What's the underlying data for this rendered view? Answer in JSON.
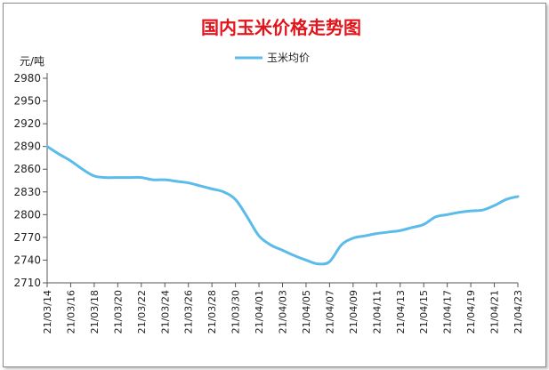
{
  "chart_data": {
    "type": "line",
    "title": "国内玉米价格走势图",
    "ylabel": "元/吨",
    "xlabel": "",
    "ylim": [
      2710,
      2980
    ],
    "yticks": [
      2710,
      2740,
      2770,
      2800,
      2830,
      2860,
      2890,
      2920,
      2950,
      2980
    ],
    "grid": false,
    "legend_position": "top-center",
    "x": [
      "21/03/14",
      "21/03/15",
      "21/03/16",
      "21/03/17",
      "21/03/18",
      "21/03/19",
      "21/03/20",
      "21/03/21",
      "21/03/22",
      "21/03/23",
      "21/03/24",
      "21/03/25",
      "21/03/26",
      "21/03/27",
      "21/03/28",
      "21/03/29",
      "21/03/30",
      "21/03/31",
      "21/04/01",
      "21/04/02",
      "21/04/03",
      "21/04/04",
      "21/04/05",
      "21/04/06",
      "21/04/07",
      "21/04/08",
      "21/04/09",
      "21/04/10",
      "21/04/11",
      "21/04/12",
      "21/04/13",
      "21/04/14",
      "21/04/15",
      "21/04/16",
      "21/04/17",
      "21/04/18",
      "21/04/19",
      "21/04/20",
      "21/04/21",
      "21/04/22",
      "21/04/23"
    ],
    "xtick_labels": [
      "21/03/14",
      "21/03/16",
      "21/03/18",
      "21/03/20",
      "21/03/22",
      "21/03/24",
      "21/03/26",
      "21/03/28",
      "21/03/30",
      "21/04/01",
      "21/04/03",
      "21/04/05",
      "21/04/07",
      "21/04/09",
      "21/04/11",
      "21/04/13",
      "21/04/15",
      "21/04/17",
      "21/04/19",
      "21/04/21",
      "21/04/23"
    ],
    "series": [
      {
        "name": "玉米均价",
        "color": "#5bbbea",
        "values": [
          2890,
          2880,
          2871,
          2860,
          2851,
          2849,
          2849,
          2849,
          2849,
          2846,
          2846,
          2844,
          2842,
          2838,
          2834,
          2830,
          2820,
          2797,
          2772,
          2760,
          2753,
          2746,
          2740,
          2735,
          2738,
          2760,
          2769,
          2772,
          2775,
          2777,
          2779,
          2783,
          2787,
          2797,
          2800,
          2803,
          2805,
          2806,
          2812,
          2820,
          2824
        ]
      }
    ]
  }
}
